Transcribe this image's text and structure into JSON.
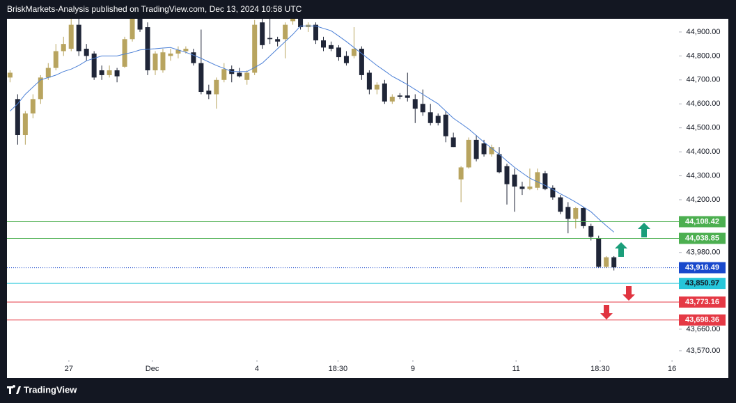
{
  "header": {
    "title": "BriskMarkets-Analysis published on TradingView.com, Dec 13, 2024 10:58 UTC"
  },
  "footer": {
    "brand": "TradingView"
  },
  "chart_data": {
    "type": "candlestick",
    "up_color": "#b8a45f",
    "down_color": "#1f2537",
    "ma_color": "#4a7fd6",
    "open": [
      44710,
      44620,
      44470,
      44560,
      44620,
      44710,
      44750,
      44820,
      44830,
      44930,
      44830,
      44810,
      44740,
      44720,
      44740,
      44755,
      44870,
      44960,
      44920,
      44740,
      44740,
      44800,
      44810,
      44820,
      44815,
      44770,
      44655,
      44640,
      44700,
      44745,
      44730,
      44700,
      44730,
      44940,
      44875,
      44870,
      44870,
      44945,
      44960,
      44920,
      44930,
      44865,
      44845,
      44835,
      44800,
      44800,
      44830,
      44730,
      44660,
      44685,
      44610,
      44635,
      44635,
      44620,
      44600,
      44565,
      44550,
      44555,
      44460,
      44285,
      44335,
      44450,
      44435,
      44390,
      44390,
      44340,
      44305,
      44255,
      44245,
      44250,
      44310,
      44250,
      44210,
      44170,
      44120,
      44165,
      44090,
      44040,
      43920,
      43960
    ],
    "high": [
      44740,
      44640,
      44570,
      44640,
      44720,
      44770,
      44850,
      44880,
      44960,
      44960,
      44850,
      44820,
      44760,
      44760,
      44750,
      44880,
      44980,
      44990,
      44940,
      44820,
      44830,
      44830,
      44840,
      44840,
      44830,
      44910,
      44680,
      44710,
      44770,
      44760,
      44750,
      44740,
      44950,
      44960,
      44960,
      44880,
      44940,
      44980,
      44970,
      44940,
      44940,
      44880,
      44860,
      44845,
      44820,
      44920,
      44840,
      44740,
      44690,
      44700,
      44640,
      44645,
      44730,
      44640,
      44660,
      44600,
      44560,
      44570,
      44480,
      44340,
      44460,
      44470,
      44450,
      44430,
      44420,
      44350,
      44330,
      44275,
      44330,
      44330,
      44320,
      44260,
      44220,
      44190,
      44170,
      44170,
      44100,
      44050,
      43965,
      43965
    ],
    "low": [
      44690,
      44430,
      44430,
      44540,
      44600,
      44700,
      44740,
      44800,
      44820,
      44800,
      44780,
      44700,
      44700,
      44710,
      44690,
      44750,
      44860,
      44900,
      44720,
      44720,
      44730,
      44780,
      44790,
      44810,
      44760,
      44640,
      44620,
      44580,
      44690,
      44690,
      44710,
      44680,
      44720,
      44830,
      44850,
      44840,
      44790,
      44930,
      44910,
      44900,
      44850,
      44820,
      44820,
      44780,
      44760,
      44790,
      44700,
      44640,
      44640,
      44600,
      44600,
      44620,
      44610,
      44520,
      44550,
      44510,
      44510,
      44440,
      44420,
      44190,
      44330,
      44360,
      44380,
      44380,
      44310,
      44180,
      44150,
      44220,
      44240,
      44240,
      44240,
      44200,
      44140,
      44060,
      44080,
      44080,
      44030,
      43915,
      43915,
      43905
    ],
    "close": [
      44730,
      44470,
      44560,
      44620,
      44710,
      44750,
      44820,
      44850,
      44930,
      44820,
      44800,
      44710,
      44720,
      44740,
      44715,
      44870,
      44960,
      44910,
      44740,
      44810,
      44815,
      44810,
      44825,
      44830,
      44770,
      44650,
      44640,
      44700,
      44745,
      44725,
      44715,
      44730,
      44930,
      44845,
      44870,
      44860,
      44930,
      44960,
      44920,
      44930,
      44865,
      44835,
      44830,
      44795,
      44770,
      44830,
      44720,
      44660,
      44680,
      44610,
      44630,
      44630,
      44625,
      44580,
      44565,
      44520,
      44520,
      44465,
      44420,
      44335,
      44450,
      44370,
      44390,
      44420,
      44315,
      44265,
      44255,
      44245,
      44255,
      44315,
      44245,
      44210,
      44150,
      44120,
      44165,
      44090,
      44045,
      43920,
      43960,
      43918
    ],
    "ma": [
      44570,
      44600,
      44640,
      44670,
      44700,
      44710,
      44720,
      44735,
      44745,
      44760,
      44780,
      44790,
      44800,
      44800,
      44800,
      44808,
      44815,
      44825,
      44828,
      44830,
      44833,
      44835,
      44825,
      44815,
      44803,
      44790,
      44775,
      44760,
      44748,
      44735,
      44735,
      44735,
      44752,
      44770,
      44800,
      44830,
      44860,
      44890,
      44925,
      44925,
      44925,
      44915,
      44905,
      44883,
      44860,
      44835,
      44810,
      44785,
      44760,
      44738,
      44715,
      44698,
      44680,
      44660,
      44640,
      44620,
      44600,
      44570,
      44540,
      44518,
      44495,
      44468,
      44440,
      44415,
      44390,
      44362,
      44335,
      44312,
      44290,
      44275,
      44260,
      44243,
      44225,
      44208,
      44190,
      44170,
      44150,
      44120,
      44092,
      44065
    ],
    "xlim": [
      -0.4,
      87.5
    ],
    "xticks": [
      {
        "value": 7.7,
        "label": "27"
      },
      {
        "value": 18.6,
        "label": "Dec"
      },
      {
        "value": 32.3,
        "label": "4"
      },
      {
        "value": 42.9,
        "label": "18:30"
      },
      {
        "value": 52.7,
        "label": "9"
      },
      {
        "value": 66.2,
        "label": "11"
      },
      {
        "value": 77.2,
        "label": "18:30"
      },
      {
        "value": 86.6,
        "label": "16"
      }
    ],
    "ylim": [
      43532,
      44955
    ],
    "yticks": [
      {
        "value": 44900,
        "label": "44,900.00"
      },
      {
        "value": 44800,
        "label": "44,800.00"
      },
      {
        "value": 44700,
        "label": "44,700.00"
      },
      {
        "value": 44600,
        "label": "44,600.00"
      },
      {
        "value": 44500,
        "label": "44,500.00"
      },
      {
        "value": 44400,
        "label": "44,400.00"
      },
      {
        "value": 44300,
        "label": "44,300.00"
      },
      {
        "value": 44200,
        "label": "44,200.00"
      },
      {
        "value": 43980,
        "label": "43,980.00"
      },
      {
        "value": 43660,
        "label": "43,660.00"
      },
      {
        "value": 43570,
        "label": "43,570.00"
      }
    ],
    "levels": [
      {
        "value": 44108.42,
        "label": "44,108.42",
        "color": "#4caf50",
        "text_color": "#ffffff"
      },
      {
        "value": 44038.85,
        "label": "44,038.85",
        "color": "#4caf50",
        "text_color": "#ffffff"
      },
      {
        "value": 43916.49,
        "label": "43,916.49",
        "color": "#1848cc",
        "text_color": "#ffffff",
        "dotted": true
      },
      {
        "value": 43850.97,
        "label": "43,850.97",
        "color": "#26c6da",
        "text_color": "#131722"
      },
      {
        "value": 43773.16,
        "label": "43,773.16",
        "color": "#e53945",
        "text_color": "#ffffff"
      },
      {
        "value": 43698.36,
        "label": "43,698.36",
        "color": "#e53945",
        "text_color": "#ffffff"
      }
    ]
  }
}
